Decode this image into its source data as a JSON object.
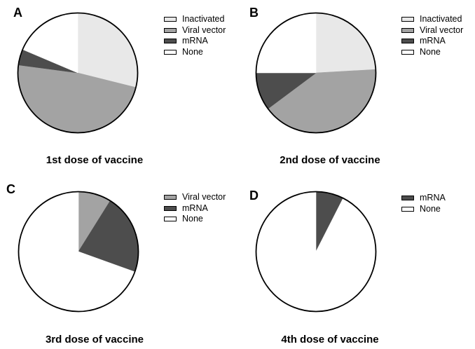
{
  "figure": {
    "background": "#ffffff",
    "outline_color": "#000000"
  },
  "palette": {
    "Inactivated": "#e8e8e8",
    "Viral vector": "#a3a3a3",
    "mRNA": "#4d4d4d",
    "None": "#ffffff"
  },
  "chart_data": [
    {
      "type": "pie",
      "panel": "A",
      "title": "1st dose of vaccine",
      "start_angle_deg": 0,
      "direction": "clockwise",
      "legend_position": "right",
      "slices": [
        {
          "label": "Inactivated",
          "value_pct": 28.9
        },
        {
          "label": "Viral vector",
          "value_pct": 48.2
        },
        {
          "label": "mRNA",
          "value_pct": 4.3
        },
        {
          "label": "None",
          "value_pct": 18.6
        }
      ],
      "legend": [
        "Inactivated",
        "Viral vector",
        "mRNA",
        "None"
      ]
    },
    {
      "type": "pie",
      "panel": "B",
      "title": "2nd dose of vaccine",
      "start_angle_deg": 0,
      "direction": "clockwise",
      "legend_position": "right",
      "slices": [
        {
          "label": "Inactivated",
          "value_pct": 24.1
        },
        {
          "label": "Viral vector",
          "value_pct": 40.7
        },
        {
          "label": "mRNA",
          "value_pct": 10.2
        },
        {
          "label": "None",
          "value_pct": 25.0
        }
      ],
      "legend": [
        "Inactivated",
        "Viral vector",
        "mRNA",
        "None"
      ]
    },
    {
      "type": "pie",
      "panel": "C",
      "title": "3rd dose of vaccine",
      "start_angle_deg": 0,
      "direction": "clockwise",
      "legend_position": "right",
      "slices": [
        {
          "label": "Viral vector",
          "value_pct": 8.9
        },
        {
          "label": "mRNA",
          "value_pct": 21.6
        },
        {
          "label": "None",
          "value_pct": 69.5
        }
      ],
      "legend": [
        "Viral vector",
        "mRNA",
        "None"
      ]
    },
    {
      "type": "pie",
      "panel": "D",
      "title": "4th dose of vaccine",
      "start_angle_deg": 0,
      "direction": "clockwise",
      "legend_position": "right",
      "slices": [
        {
          "label": "mRNA",
          "value_pct": 7.5
        },
        {
          "label": "None",
          "value_pct": 92.5
        }
      ],
      "legend": [
        "mRNA",
        "None"
      ]
    }
  ]
}
